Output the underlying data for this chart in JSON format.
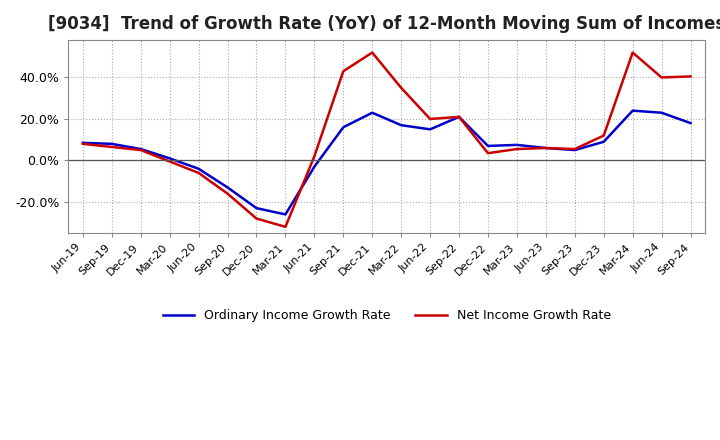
{
  "title": "[9034]  Trend of Growth Rate (YoY) of 12-Month Moving Sum of Incomes",
  "title_fontsize": 12,
  "ylim": [
    -35,
    58
  ],
  "yticks": [
    -20.0,
    0.0,
    20.0,
    40.0
  ],
  "background_color": "#ffffff",
  "grid_color": "#aaaaaa",
  "ordinary_color": "#0000cc",
  "net_color": "#cc0000",
  "legend_ordinary": "Ordinary Income Growth Rate",
  "legend_net": "Net Income Growth Rate",
  "x_labels": [
    "Jun-19",
    "Sep-19",
    "Dec-19",
    "Mar-20",
    "Jun-20",
    "Sep-20",
    "Dec-20",
    "Mar-21",
    "Jun-21",
    "Sep-21",
    "Dec-21",
    "Mar-22",
    "Jun-22",
    "Sep-22",
    "Dec-22",
    "Mar-23",
    "Jun-23",
    "Sep-23",
    "Dec-23",
    "Mar-24",
    "Jun-24",
    "Sep-24"
  ],
  "ordinary_income": [
    8.5,
    8.0,
    5.5,
    1.0,
    -4.0,
    -13.0,
    -23.0,
    -26.0,
    -3.0,
    16.0,
    23.0,
    17.0,
    15.0,
    21.0,
    7.0,
    7.5,
    6.0,
    5.0,
    9.0,
    24.0,
    23.0,
    18.0
  ],
  "net_income": [
    8.0,
    6.5,
    5.0,
    -0.5,
    -6.0,
    -16.0,
    -28.0,
    -32.0,
    2.0,
    43.0,
    52.0,
    35.0,
    20.0,
    21.0,
    3.5,
    5.5,
    6.0,
    5.5,
    12.0,
    52.0,
    40.0,
    40.5
  ]
}
